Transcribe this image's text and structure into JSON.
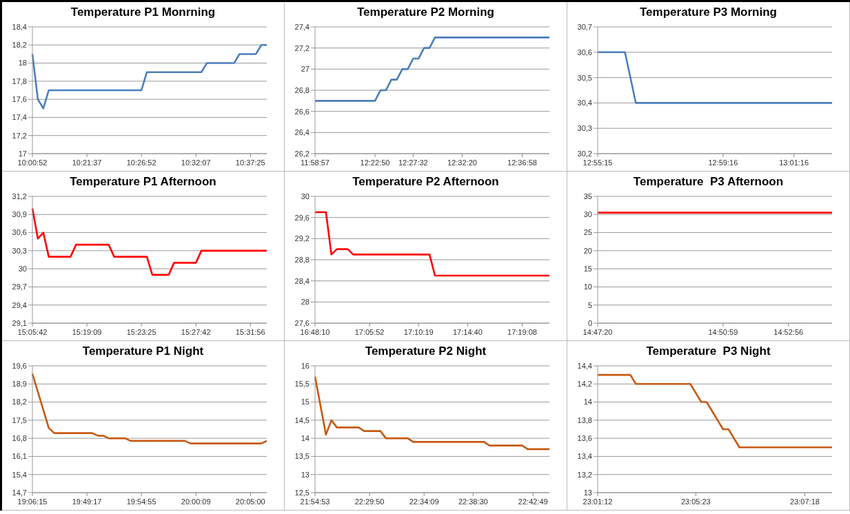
{
  "chart_data": [
    {
      "type": "line",
      "title": "Temperature P1 Monrning",
      "categories": [
        "10:00:52",
        null,
        null,
        null,
        null,
        null,
        null,
        null,
        null,
        null,
        "10:21:37",
        null,
        null,
        null,
        null,
        null,
        null,
        null,
        null,
        null,
        "10:26:52",
        null,
        null,
        null,
        null,
        null,
        null,
        null,
        null,
        null,
        "10:32:07",
        null,
        null,
        null,
        null,
        null,
        null,
        null,
        null,
        null,
        "10:37:25",
        null,
        null,
        null
      ],
      "series": [
        {
          "color": "#4a7ebb",
          "values": [
            18.1,
            17.6,
            17.5,
            17.7,
            17.7,
            17.7,
            17.7,
            17.7,
            17.7,
            17.7,
            17.7,
            17.7,
            17.7,
            17.7,
            17.7,
            17.7,
            17.7,
            17.7,
            17.7,
            17.7,
            17.7,
            17.9,
            17.9,
            17.9,
            17.9,
            17.9,
            17.9,
            17.9,
            17.9,
            17.9,
            17.9,
            17.9,
            18.0,
            18.0,
            18.0,
            18.0,
            18.0,
            18.0,
            18.1,
            18.1,
            18.1,
            18.1,
            18.2,
            18.2
          ]
        }
      ],
      "ylim": [
        17,
        18.4
      ],
      "yticks": [
        17,
        {
          "value": 17.2,
          "label": "17,2"
        },
        {
          "value": 17.4,
          "label": "17,4"
        },
        {
          "value": 17.6,
          "label": "17,6"
        },
        {
          "value": 17.8,
          "label": "17,8"
        },
        18,
        {
          "value": 18.2,
          "label": "18,2"
        },
        {
          "value": 18.4,
          "label": "18,4"
        }
      ],
      "grid": "y"
    },
    {
      "type": "line",
      "title": "Temperature P2 Morning",
      "categories": [
        "11:58:57",
        null,
        null,
        null,
        null,
        null,
        null,
        null,
        null,
        null,
        null,
        "12:22:50",
        null,
        null,
        null,
        null,
        null,
        null,
        "12:27:32",
        null,
        null,
        null,
        null,
        null,
        null,
        null,
        null,
        "12:32:20",
        null,
        null,
        null,
        null,
        null,
        null,
        null,
        null,
        null,
        null,
        "12:36:58",
        null,
        null,
        null,
        null,
        null
      ],
      "series": [
        {
          "color": "#4a7ebb",
          "values": [
            26.7,
            26.7,
            26.7,
            26.7,
            26.7,
            26.7,
            26.7,
            26.7,
            26.7,
            26.7,
            26.7,
            26.7,
            26.8,
            26.8,
            26.9,
            26.9,
            27.0,
            27.0,
            27.1,
            27.1,
            27.2,
            27.2,
            27.3,
            27.3,
            27.3,
            27.3,
            27.3,
            27.3,
            27.3,
            27.3,
            27.3,
            27.3,
            27.3,
            27.3,
            27.3,
            27.3,
            27.3,
            27.3,
            27.3,
            27.3,
            27.3,
            27.3,
            27.3,
            27.3
          ]
        }
      ],
      "ylim": [
        26.2,
        27.4
      ],
      "yticks": [
        {
          "value": 26.2,
          "label": "26,2"
        },
        {
          "value": 26.4,
          "label": "26,4"
        },
        {
          "value": 26.6,
          "label": "26,6"
        },
        {
          "value": 26.8,
          "label": "26,8"
        },
        27,
        {
          "value": 27.2,
          "label": "27,2"
        },
        {
          "value": 27.4,
          "label": "27,4"
        }
      ],
      "grid": "y"
    },
    {
      "type": "line",
      "title": "Temperature P3 Morning",
      "categories": [
        "12:55:15",
        null,
        null,
        null,
        null,
        null,
        null,
        null,
        null,
        null,
        null,
        null,
        null,
        null,
        null,
        null,
        null,
        null,
        null,
        null,
        null,
        null,
        null,
        "12:59:16",
        null,
        null,
        null,
        null,
        null,
        null,
        null,
        null,
        null,
        null,
        null,
        null,
        "13:01:16",
        null,
        null,
        null,
        null,
        null,
        null,
        null
      ],
      "series": [
        {
          "color": "#4a7ebb",
          "values": [
            30.6,
            30.6,
            30.6,
            30.6,
            30.6,
            30.6,
            30.5,
            30.4,
            30.4,
            30.4,
            30.4,
            30.4,
            30.4,
            30.4,
            30.4,
            30.4,
            30.4,
            30.4,
            30.4,
            30.4,
            30.4,
            30.4,
            30.4,
            30.4,
            30.4,
            30.4,
            30.4,
            30.4,
            30.4,
            30.4,
            30.4,
            30.4,
            30.4,
            30.4,
            30.4,
            30.4,
            30.4,
            30.4,
            30.4,
            30.4,
            30.4,
            30.4,
            30.4,
            30.4
          ]
        }
      ],
      "ylim": [
        30.2,
        30.7
      ],
      "yticks": [
        {
          "value": 30.2,
          "label": "30,2"
        },
        {
          "value": 30.3,
          "label": "30,3"
        },
        {
          "value": 30.4,
          "label": "30,4"
        },
        {
          "value": 30.5,
          "label": "30,5"
        },
        {
          "value": 30.6,
          "label": "30,6"
        },
        {
          "value": 30.7,
          "label": "30,7"
        }
      ],
      "grid": "y"
    },
    {
      "type": "line",
      "title": "Temperature P1 Afternoon",
      "categories": [
        "15:05:42",
        null,
        null,
        null,
        null,
        null,
        null,
        null,
        null,
        null,
        "15:19:09",
        null,
        null,
        null,
        null,
        null,
        null,
        null,
        null,
        null,
        "15:23:25",
        null,
        null,
        null,
        null,
        null,
        null,
        null,
        null,
        null,
        "15:27:42",
        null,
        null,
        null,
        null,
        null,
        null,
        null,
        null,
        null,
        "15:31:56",
        null,
        null,
        null
      ],
      "series": [
        {
          "color": "#ff0000",
          "values": [
            31.0,
            30.5,
            30.6,
            30.2,
            30.2,
            30.2,
            30.2,
            30.2,
            30.4,
            30.4,
            30.4,
            30.4,
            30.4,
            30.4,
            30.4,
            30.2,
            30.2,
            30.2,
            30.2,
            30.2,
            30.2,
            30.2,
            29.9,
            29.9,
            29.9,
            29.9,
            30.1,
            30.1,
            30.1,
            30.1,
            30.1,
            30.3,
            30.3,
            30.3,
            30.3,
            30.3,
            30.3,
            30.3,
            30.3,
            30.3,
            30.3,
            30.3,
            30.3,
            30.3
          ]
        }
      ],
      "ylim": [
        29.1,
        31.2
      ],
      "yticks": [
        {
          "value": 29.1,
          "label": "29,1"
        },
        {
          "value": 29.4,
          "label": "29,4"
        },
        {
          "value": 29.7,
          "label": "29,7"
        },
        30,
        {
          "value": 30.3,
          "label": "30,3"
        },
        {
          "value": 30.6,
          "label": "30,6"
        },
        {
          "value": 30.9,
          "label": "30,9"
        },
        {
          "value": 31.2,
          "label": "31,2"
        }
      ],
      "grid": "y"
    },
    {
      "type": "line",
      "title": "Temperature P2 Afternoon",
      "categories": [
        "16:48:10",
        null,
        null,
        null,
        null,
        null,
        null,
        null,
        null,
        null,
        "17:05:52",
        null,
        null,
        null,
        null,
        null,
        null,
        null,
        null,
        "17:10:19",
        null,
        null,
        null,
        null,
        null,
        null,
        null,
        null,
        "17:14:40",
        null,
        null,
        null,
        null,
        null,
        null,
        null,
        null,
        null,
        "17:19:08",
        null,
        null,
        null,
        null,
        null
      ],
      "series": [
        {
          "color": "#ff0000",
          "values": [
            29.7,
            29.7,
            29.7,
            28.9,
            29.0,
            29.0,
            29.0,
            28.9,
            28.9,
            28.9,
            28.9,
            28.9,
            28.9,
            28.9,
            28.9,
            28.9,
            28.9,
            28.9,
            28.9,
            28.9,
            28.9,
            28.9,
            28.5,
            28.5,
            28.5,
            28.5,
            28.5,
            28.5,
            28.5,
            28.5,
            28.5,
            28.5,
            28.5,
            28.5,
            28.5,
            28.5,
            28.5,
            28.5,
            28.5,
            28.5,
            28.5,
            28.5,
            28.5,
            28.5
          ]
        }
      ],
      "ylim": [
        27.6,
        30
      ],
      "yticks": [
        {
          "value": 27.6,
          "label": "27,6"
        },
        28,
        {
          "value": 28.4,
          "label": "28,4"
        },
        {
          "value": 28.8,
          "label": "28,8"
        },
        {
          "value": 29.2,
          "label": "29,2"
        },
        {
          "value": 29.6,
          "label": "29,6"
        },
        30
      ],
      "grid": "y"
    },
    {
      "type": "line",
      "title": "Temperature  P3 Afternoon",
      "categories": [
        "14:47:20",
        null,
        null,
        null,
        null,
        null,
        null,
        null,
        null,
        null,
        null,
        null,
        null,
        null,
        null,
        null,
        null,
        null,
        null,
        null,
        null,
        null,
        null,
        "14:50:59",
        null,
        null,
        null,
        null,
        null,
        null,
        null,
        null,
        null,
        null,
        null,
        "14:52:56",
        null,
        null,
        null,
        null,
        null,
        null,
        null,
        null
      ],
      "series": [
        {
          "color": "#ff0000",
          "values": [
            30.5,
            30.5,
            30.5,
            30.5,
            30.5,
            30.5,
            30.5,
            30.5,
            30.5,
            30.5,
            30.5,
            30.5,
            30.5,
            30.5,
            30.5,
            30.5,
            30.5,
            30.5,
            30.5,
            30.5,
            30.5,
            30.5,
            30.5,
            30.5,
            30.5,
            30.5,
            30.5,
            30.5,
            30.5,
            30.5,
            30.5,
            30.5,
            30.5,
            30.5,
            30.5,
            30.5,
            30.5,
            30.5,
            30.5,
            30.5,
            30.5,
            30.5,
            30.5,
            30.5
          ]
        }
      ],
      "ylim": [
        0,
        35
      ],
      "yticks": [
        0,
        5,
        10,
        15,
        20,
        25,
        30,
        35
      ],
      "grid": "y"
    },
    {
      "type": "line",
      "title": "Temperature P1 Night",
      "categories": [
        "19:06:15",
        null,
        null,
        null,
        null,
        null,
        null,
        null,
        null,
        null,
        "19:49:17",
        null,
        null,
        null,
        null,
        null,
        null,
        null,
        null,
        null,
        "19:54:55",
        null,
        null,
        null,
        null,
        null,
        null,
        null,
        null,
        null,
        "20:00:09",
        null,
        null,
        null,
        null,
        null,
        null,
        null,
        null,
        null,
        "20:05:00",
        null,
        null,
        null
      ],
      "series": [
        {
          "color": "#c65911",
          "values": [
            19.3,
            18.6,
            17.9,
            17.2,
            17.0,
            17.0,
            17.0,
            17.0,
            17.0,
            17.0,
            17.0,
            17.0,
            16.9,
            16.9,
            16.8,
            16.8,
            16.8,
            16.8,
            16.7,
            16.7,
            16.7,
            16.7,
            16.7,
            16.7,
            16.7,
            16.7,
            16.7,
            16.7,
            16.7,
            16.6,
            16.6,
            16.6,
            16.6,
            16.6,
            16.6,
            16.6,
            16.6,
            16.6,
            16.6,
            16.6,
            16.6,
            16.6,
            16.6,
            16.7
          ]
        }
      ],
      "ylim": [
        14.7,
        19.6
      ],
      "yticks": [
        {
          "value": 14.7,
          "label": "14,7"
        },
        {
          "value": 15.4,
          "label": "15,4"
        },
        {
          "value": 16.1,
          "label": "16,1"
        },
        {
          "value": 16.8,
          "label": "16,8"
        },
        {
          "value": 17.5,
          "label": "17,5"
        },
        {
          "value": 18.2,
          "label": "18,2"
        },
        {
          "value": 18.9,
          "label": "18,9"
        },
        {
          "value": 19.6,
          "label": "19,6"
        }
      ],
      "grid": "y"
    },
    {
      "type": "line",
      "title": "Temperature P2 Night",
      "categories": [
        "21:54:53",
        null,
        null,
        null,
        null,
        null,
        null,
        null,
        null,
        null,
        "22:29:50",
        null,
        null,
        null,
        null,
        null,
        null,
        null,
        null,
        null,
        "22:34:09",
        null,
        null,
        null,
        null,
        null,
        null,
        null,
        null,
        "22:38:30",
        null,
        null,
        null,
        null,
        null,
        null,
        null,
        null,
        null,
        null,
        "22:42:49",
        null,
        null,
        null
      ],
      "series": [
        {
          "color": "#c65911",
          "values": [
            15.7,
            14.9,
            14.1,
            14.5,
            14.3,
            14.3,
            14.3,
            14.3,
            14.3,
            14.2,
            14.2,
            14.2,
            14.2,
            14.0,
            14.0,
            14.0,
            14.0,
            14.0,
            13.9,
            13.9,
            13.9,
            13.9,
            13.9,
            13.9,
            13.9,
            13.9,
            13.9,
            13.9,
            13.9,
            13.9,
            13.9,
            13.9,
            13.8,
            13.8,
            13.8,
            13.8,
            13.8,
            13.8,
            13.8,
            13.7,
            13.7,
            13.7,
            13.7,
            13.7
          ]
        }
      ],
      "ylim": [
        12.5,
        16
      ],
      "yticks": [
        {
          "value": 12.5,
          "label": "12,5"
        },
        13,
        {
          "value": 13.5,
          "label": "13,5"
        },
        14,
        {
          "value": 14.5,
          "label": "14,5"
        },
        15,
        {
          "value": 15.5,
          "label": "15,5"
        },
        16
      ],
      "grid": "y"
    },
    {
      "type": "line",
      "title": "Temperature  P3 Night",
      "categories": [
        "23:01:12",
        null,
        null,
        null,
        null,
        null,
        null,
        null,
        null,
        null,
        null,
        null,
        null,
        null,
        null,
        null,
        null,
        null,
        "23:05:23",
        null,
        null,
        null,
        null,
        null,
        null,
        null,
        null,
        null,
        null,
        null,
        null,
        null,
        null,
        null,
        null,
        null,
        null,
        null,
        "23:07:18",
        null,
        null,
        null,
        null,
        null
      ],
      "series": [
        {
          "color": "#c65911",
          "values": [
            14.3,
            14.3,
            14.3,
            14.3,
            14.3,
            14.3,
            14.3,
            14.2,
            14.2,
            14.2,
            14.2,
            14.2,
            14.2,
            14.2,
            14.2,
            14.2,
            14.2,
            14.2,
            14.1,
            14.0,
            14.0,
            13.9,
            13.8,
            13.7,
            13.7,
            13.6,
            13.5,
            13.5,
            13.5,
            13.5,
            13.5,
            13.5,
            13.5,
            13.5,
            13.5,
            13.5,
            13.5,
            13.5,
            13.5,
            13.5,
            13.5,
            13.5,
            13.5,
            13.5
          ]
        }
      ],
      "ylim": [
        13,
        14.4
      ],
      "yticks": [
        13,
        {
          "value": 13.2,
          "label": "13,2"
        },
        {
          "value": 13.4,
          "label": "13,4"
        },
        {
          "value": 13.6,
          "label": "13,6"
        },
        {
          "value": 13.8,
          "label": "13,8"
        },
        14,
        {
          "value": 14.2,
          "label": "14,2"
        },
        {
          "value": 14.4,
          "label": "14,4"
        }
      ],
      "grid": "y"
    }
  ]
}
